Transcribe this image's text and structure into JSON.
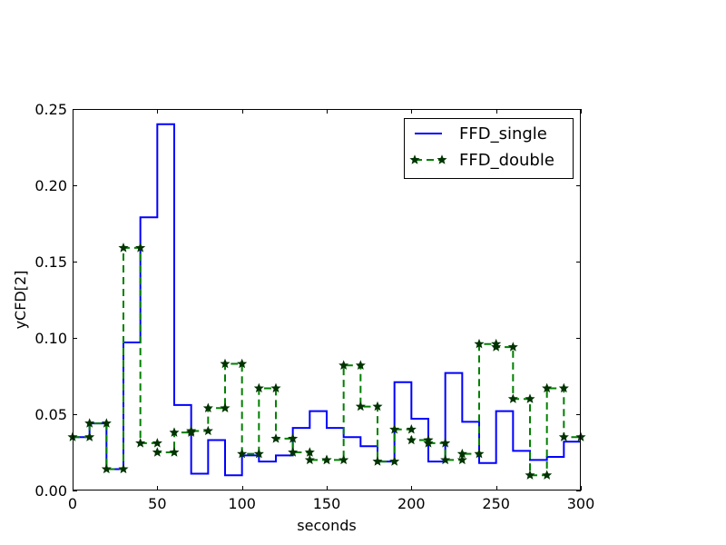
{
  "chart_data": {
    "type": "line",
    "drawstyle": "steps-post",
    "xlabel": "seconds",
    "ylabel": "yCFD[2]",
    "xlim": [
      0,
      300
    ],
    "ylim": [
      0,
      0.25
    ],
    "xticks": [
      0,
      50,
      100,
      150,
      200,
      250,
      300
    ],
    "xtick_labels": [
      "0",
      "50",
      "100",
      "150",
      "200",
      "250",
      "300"
    ],
    "yticks": [
      0,
      0.05,
      0.1,
      0.15,
      0.2,
      0.25
    ],
    "ytick_labels": [
      "0.00",
      "0.05",
      "0.10",
      "0.15",
      "0.20",
      "0.25"
    ],
    "grid": false,
    "legend_position": "top-right",
    "series": [
      {
        "name": "FFD_single",
        "color": "#0000ff",
        "linestyle": "solid",
        "marker": "none",
        "x": [
          0,
          10,
          20,
          30,
          40,
          50,
          60,
          70,
          80,
          90,
          100,
          110,
          120,
          130,
          140,
          150,
          160,
          170,
          180,
          190,
          200,
          210,
          220,
          230,
          240,
          250,
          260,
          270,
          280,
          290
        ],
        "values": [
          0.035,
          0.044,
          0.014,
          0.097,
          0.179,
          0.24,
          0.056,
          0.011,
          0.033,
          0.01,
          0.023,
          0.019,
          0.023,
          0.041,
          0.052,
          0.041,
          0.035,
          0.029,
          0.019,
          0.071,
          0.047,
          0.019,
          0.077,
          0.045,
          0.018,
          0.052,
          0.026,
          0.02,
          0.022,
          0.032
        ]
      },
      {
        "name": "FFD_double",
        "color": "#008000",
        "marker_color": "#003300",
        "linestyle": "dashed",
        "marker": "star",
        "x": [
          0,
          10,
          20,
          30,
          40,
          50,
          60,
          70,
          80,
          90,
          100,
          110,
          120,
          130,
          140,
          150,
          160,
          170,
          180,
          190,
          200,
          210,
          220,
          230,
          240,
          250,
          260,
          270,
          280,
          290
        ],
        "values": [
          0.035,
          0.044,
          0.014,
          0.159,
          0.031,
          0.025,
          0.038,
          0.039,
          0.054,
          0.083,
          0.024,
          0.067,
          0.034,
          0.025,
          0.02,
          0.02,
          0.082,
          0.055,
          0.019,
          0.04,
          0.033,
          0.031,
          0.02,
          0.024,
          0.096,
          0.094,
          0.06,
          0.01,
          0.067,
          0.035
        ]
      }
    ]
  }
}
